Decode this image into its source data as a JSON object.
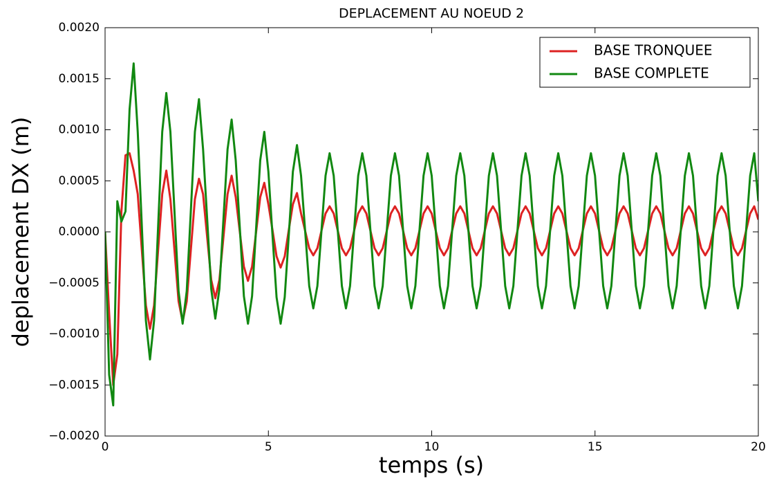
{
  "chart_data": {
    "type": "line",
    "title": "DEPLACEMENT AU NOEUD 2",
    "x_label": "temps (s)",
    "y_label": "deplacement DX (m)",
    "xlim": [
      0,
      20
    ],
    "ylim": [
      -0.002,
      0.002
    ],
    "xticks": [
      0,
      5,
      10,
      15,
      20
    ],
    "yticks": [
      {
        "value": -0.002,
        "label": "−0.0020"
      },
      {
        "value": -0.0015,
        "label": "−0.0015"
      },
      {
        "value": -0.001,
        "label": "−0.0010"
      },
      {
        "value": -0.0005,
        "label": "−0.0005"
      },
      {
        "value": 0,
        "label": "0.0000"
      },
      {
        "value": 0.0005,
        "label": "0.0005"
      },
      {
        "value": 0.001,
        "label": "0.0010"
      },
      {
        "value": 0.0015,
        "label": "0.0015"
      },
      {
        "value": 0.002,
        "label": "0.0020"
      }
    ],
    "legend": "upper right",
    "grid": false,
    "x": [
      0,
      0.125,
      0.25,
      0.375,
      0.5,
      0.625,
      0.75,
      0.875,
      1,
      1.125,
      1.25,
      1.375,
      1.5,
      1.625,
      1.75,
      1.875,
      2,
      2.125,
      2.25,
      2.375,
      2.5,
      2.625,
      2.75,
      2.875,
      3,
      3.125,
      3.25,
      3.375,
      3.5,
      3.625,
      3.75,
      3.875,
      4,
      4.125,
      4.25,
      4.375,
      4.5,
      4.625,
      4.75,
      4.875,
      5,
      5.125,
      5.25,
      5.375,
      5.5,
      5.625,
      5.75,
      5.875,
      6,
      6.125,
      6.25,
      6.375,
      6.5,
      6.625,
      6.75,
      6.875,
      7,
      7.125,
      7.25,
      7.375,
      7.5,
      7.625,
      7.75,
      7.875,
      8,
      8.125,
      8.25,
      8.375,
      8.5,
      8.625,
      8.75,
      8.875,
      9,
      9.125,
      9.25,
      9.375,
      9.5,
      9.625,
      9.75,
      9.875,
      10,
      10.125,
      10.25,
      10.375,
      10.5,
      10.625,
      10.75,
      10.875,
      11,
      11.125,
      11.25,
      11.375,
      11.5,
      11.625,
      11.75,
      11.875,
      12,
      12.125,
      12.25,
      12.375,
      12.5,
      12.625,
      12.75,
      12.875,
      13,
      13.125,
      13.25,
      13.375,
      13.5,
      13.625,
      13.75,
      13.875,
      14,
      14.125,
      14.25,
      14.375,
      14.5,
      14.625,
      14.75,
      14.875,
      15,
      15.125,
      15.25,
      15.375,
      15.5,
      15.625,
      15.75,
      15.875,
      16,
      16.125,
      16.25,
      16.375,
      16.5,
      16.625,
      16.75,
      16.875,
      17,
      17.125,
      17.25,
      17.375,
      17.5,
      17.625,
      17.75,
      17.875,
      18,
      18.125,
      18.25,
      18.375,
      18.5,
      18.625,
      18.75,
      18.875,
      19,
      19.125,
      19.25,
      19.375,
      19.5,
      19.625,
      19.75,
      19.875,
      20
    ],
    "series": [
      {
        "name": "BASE TRONQUEE",
        "color": "#dd2222",
        "values": [
          0,
          -0.0008,
          -0.0015,
          -0.0012,
          0.0002,
          0.00075,
          0.00077,
          0.0006,
          0.00037,
          -0.000175,
          -0.00072,
          -0.00095,
          -0.00072,
          -0.000175,
          0.00037,
          0.0006,
          0.00032,
          -0.00018,
          -0.00068,
          -0.00088,
          -0.00068,
          -0.00018,
          0.00032,
          0.00052,
          0.00037,
          -5e-05,
          -0.00047,
          -0.00065,
          -0.00047,
          -5e-05,
          0.00037,
          0.00055,
          0.00034,
          0,
          -0.00034,
          -0.00048,
          -0.00034,
          0,
          0.00034,
          0.00048,
          0.00027,
          2e-05,
          -0.00024,
          -0.00035,
          -0.00024,
          2e-05,
          0.00027,
          0.00038,
          0.00018,
          1e-05,
          -0.00016,
          -0.00023,
          -0.00016,
          1e-05,
          0.00018,
          0.00025,
          0.00018,
          1e-05,
          -0.00016,
          -0.00023,
          -0.00016,
          1e-05,
          0.00018,
          0.00025,
          0.00018,
          1e-05,
          -0.00016,
          -0.00023,
          -0.00016,
          1e-05,
          0.00018,
          0.00025,
          0.00018,
          1e-05,
          -0.00016,
          -0.00023,
          -0.00016,
          1e-05,
          0.00018,
          0.00025,
          0.00018,
          1e-05,
          -0.00016,
          -0.00023,
          -0.00016,
          1e-05,
          0.00018,
          0.00025,
          0.00018,
          1e-05,
          -0.00016,
          -0.00023,
          -0.00016,
          1e-05,
          0.00018,
          0.00025,
          0.00018,
          1e-05,
          -0.00016,
          -0.00023,
          -0.00016,
          1e-05,
          0.00018,
          0.00025,
          0.00018,
          1e-05,
          -0.00016,
          -0.00023,
          -0.00016,
          1e-05,
          0.00018,
          0.00025,
          0.00018,
          1e-05,
          -0.00016,
          -0.00023,
          -0.00016,
          1e-05,
          0.00018,
          0.00025,
          0.00018,
          1e-05,
          -0.00016,
          -0.00023,
          -0.00016,
          1e-05,
          0.00018,
          0.00025,
          0.00018,
          1e-05,
          -0.00016,
          -0.00023,
          -0.00016,
          1e-05,
          0.00018,
          0.00025,
          0.00018,
          1e-05,
          -0.00016,
          -0.00023,
          -0.00016,
          1e-05,
          0.00018,
          0.00025,
          0.00018,
          1e-05,
          -0.00016,
          -0.00023,
          -0.00016,
          1e-05,
          0.00018,
          0.00025,
          0.00018,
          1e-05,
          -0.00016,
          -0.00023,
          -0.00016,
          1e-05,
          0.00018,
          0.00025,
          0.00012
        ]
      },
      {
        "name": "BASE COMPLETE",
        "color": "#118811",
        "values": [
          0,
          -0.0014,
          -0.0017,
          0.0003,
          0.0001,
          0.0002,
          0.0012,
          0.00165,
          0.00098,
          6e-05,
          -0.00087,
          -0.00125,
          -0.00087,
          6e-05,
          0.00098,
          0.00136,
          0.00098,
          0.0002,
          -0.00058,
          -0.0009,
          -0.00058,
          0.0002,
          0.00098,
          0.0013,
          0.00081,
          0.00013,
          -0.00056,
          -0.00085,
          -0.00056,
          0.00013,
          0.00081,
          0.0011,
          0.0007,
          4e-05,
          -0.00063,
          -0.0009,
          -0.00063,
          4e-05,
          0.0007,
          0.00098,
          0.00059,
          -3e-05,
          -0.00064,
          -0.0009,
          -0.00064,
          -3e-05,
          0.00059,
          0.00085,
          0.00055,
          1e-05,
          -0.00053,
          -0.00075,
          -0.00053,
          1e-05,
          0.00055,
          0.00077,
          0.00055,
          1e-05,
          -0.00053,
          -0.00075,
          -0.00053,
          1e-05,
          0.00055,
          0.00077,
          0.00055,
          1e-05,
          -0.00053,
          -0.00075,
          -0.00053,
          1e-05,
          0.00055,
          0.00077,
          0.00055,
          1e-05,
          -0.00053,
          -0.00075,
          -0.00053,
          1e-05,
          0.00055,
          0.00077,
          0.00055,
          1e-05,
          -0.00053,
          -0.00075,
          -0.00053,
          1e-05,
          0.00055,
          0.00077,
          0.00055,
          1e-05,
          -0.00053,
          -0.00075,
          -0.00053,
          1e-05,
          0.00055,
          0.00077,
          0.00055,
          1e-05,
          -0.00053,
          -0.00075,
          -0.00053,
          1e-05,
          0.00055,
          0.00077,
          0.00055,
          1e-05,
          -0.00053,
          -0.00075,
          -0.00053,
          1e-05,
          0.00055,
          0.00077,
          0.00055,
          1e-05,
          -0.00053,
          -0.00075,
          -0.00053,
          1e-05,
          0.00055,
          0.00077,
          0.00055,
          1e-05,
          -0.00053,
          -0.00075,
          -0.00053,
          1e-05,
          0.00055,
          0.00077,
          0.00055,
          1e-05,
          -0.00053,
          -0.00075,
          -0.00053,
          1e-05,
          0.00055,
          0.00077,
          0.00055,
          1e-05,
          -0.00053,
          -0.00075,
          -0.00053,
          1e-05,
          0.00055,
          0.00077,
          0.00055,
          1e-05,
          -0.00053,
          -0.00075,
          -0.00053,
          1e-05,
          0.00055,
          0.00077,
          0.00055,
          1e-05,
          -0.00053,
          -0.00075,
          -0.00053,
          1e-05,
          0.00055,
          0.00077,
          0.0003
        ]
      }
    ]
  }
}
